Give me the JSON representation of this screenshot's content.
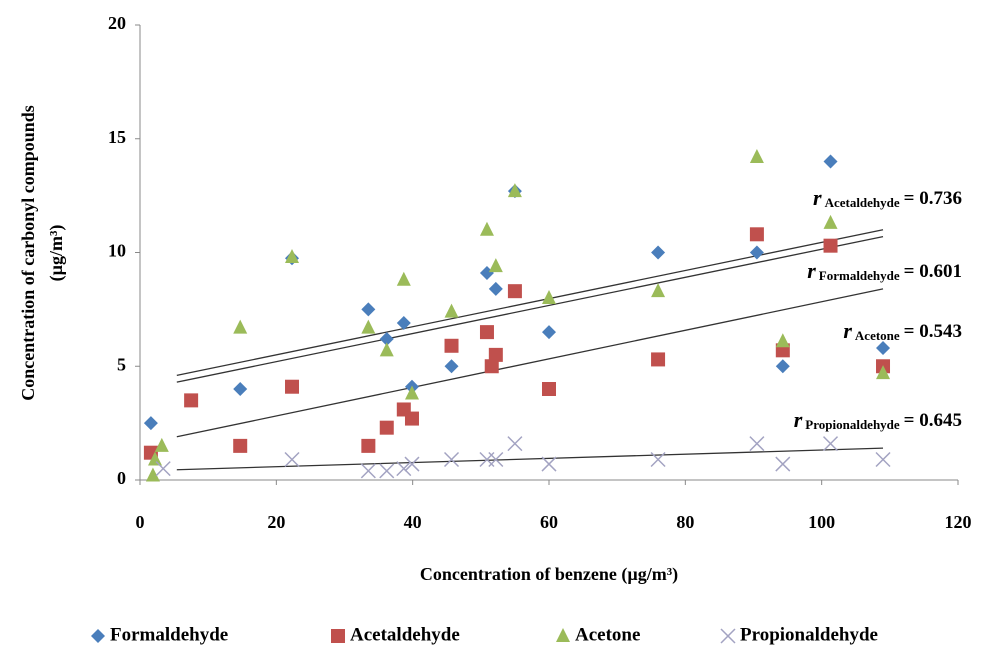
{
  "chart_data": {
    "type": "scatter",
    "ylabel": [
      "Concentration of carbonyl compounds",
      "(µg/m³)"
    ],
    "xlabel": "Concentration of benzene (µg/m³)",
    "xlim": [
      0,
      120
    ],
    "xticks": [
      0,
      20,
      40,
      60,
      80,
      100,
      120
    ],
    "ylim": [
      0,
      20
    ],
    "yticks": [
      0,
      5,
      10,
      15,
      20
    ],
    "legend": "bottom",
    "series": [
      {
        "name": "Formaldehyde",
        "color": "#4a7ebb",
        "marker": "diamond",
        "x": [
          1.6,
          14.7,
          22.3,
          33.5,
          36.2,
          38.7,
          39.9,
          45.7,
          50.9,
          52.2,
          55,
          60,
          76,
          90.5,
          94.3,
          101.3,
          109
        ],
        "values": [
          2.5,
          4.0,
          9.75,
          7.5,
          6.2,
          6.9,
          4.1,
          5.0,
          9.1,
          8.4,
          12.7,
          6.5,
          10.0,
          10.0,
          5.0,
          14.0,
          5.8
        ],
        "trendline": {
          "x": [
            5.4,
            109
          ],
          "values": [
            4.6,
            11.0
          ]
        }
      },
      {
        "name": "Acetaldehyde",
        "color": "#c0504d",
        "marker": "square",
        "x": [
          1.6,
          7.5,
          14.7,
          22.3,
          33.5,
          36.2,
          38.7,
          39.9,
          45.7,
          50.9,
          51.6,
          52.2,
          55,
          60,
          76,
          90.5,
          94.3,
          101.3,
          109
        ],
        "values": [
          1.2,
          3.5,
          1.5,
          4.1,
          1.5,
          2.3,
          3.1,
          2.7,
          5.9,
          6.5,
          5.0,
          5.5,
          8.3,
          4.0,
          5.3,
          10.8,
          5.7,
          10.3,
          5.0
        ],
        "trendline": {
          "x": [
            5.4,
            109
          ],
          "values": [
            1.9,
            8.4
          ]
        }
      },
      {
        "name": "Acetone",
        "color": "#9bbb59",
        "marker": "triangle",
        "x": [
          1.9,
          2.2,
          3.2,
          14.7,
          22.3,
          33.5,
          36.2,
          38.7,
          39.9,
          45.7,
          50.9,
          52.2,
          55,
          60,
          76,
          90.5,
          94.3,
          101.3,
          109
        ],
        "values": [
          0.2,
          0.9,
          1.5,
          6.7,
          9.8,
          6.7,
          5.7,
          8.8,
          3.8,
          7.4,
          11.0,
          9.4,
          12.7,
          8.0,
          8.3,
          14.2,
          6.1,
          11.3,
          4.7
        ],
        "trendline": {
          "x": [
            5.4,
            109
          ],
          "values": [
            4.3,
            10.7
          ]
        }
      },
      {
        "name": "Propionaldehyde",
        "color": "#a3a3c2",
        "marker": "x",
        "x": [
          3.4,
          22.3,
          33.5,
          36.2,
          38.7,
          39.9,
          45.7,
          50.9,
          52.2,
          55,
          60,
          76,
          90.5,
          94.3,
          101.3,
          109
        ],
        "values": [
          0.5,
          0.9,
          0.4,
          0.4,
          0.5,
          0.7,
          0.9,
          0.9,
          0.9,
          1.6,
          0.7,
          0.9,
          1.6,
          0.7,
          1.6,
          0.9
        ],
        "trendline": {
          "x": [
            5.4,
            109
          ],
          "values": [
            0.45,
            1.4
          ]
        }
      }
    ],
    "annotations": [
      {
        "symbol": "r",
        "subscript": "Acetaldehyde",
        "text": "= 0.736"
      },
      {
        "symbol": "r",
        "subscript": "Formaldehyde",
        "text": "= 0.601"
      },
      {
        "symbol": "r",
        "subscript": "Acetone",
        "text": "= 0.543"
      },
      {
        "symbol": "r",
        "subscript": "Propionaldehyde",
        "text": "= 0.645"
      }
    ]
  }
}
